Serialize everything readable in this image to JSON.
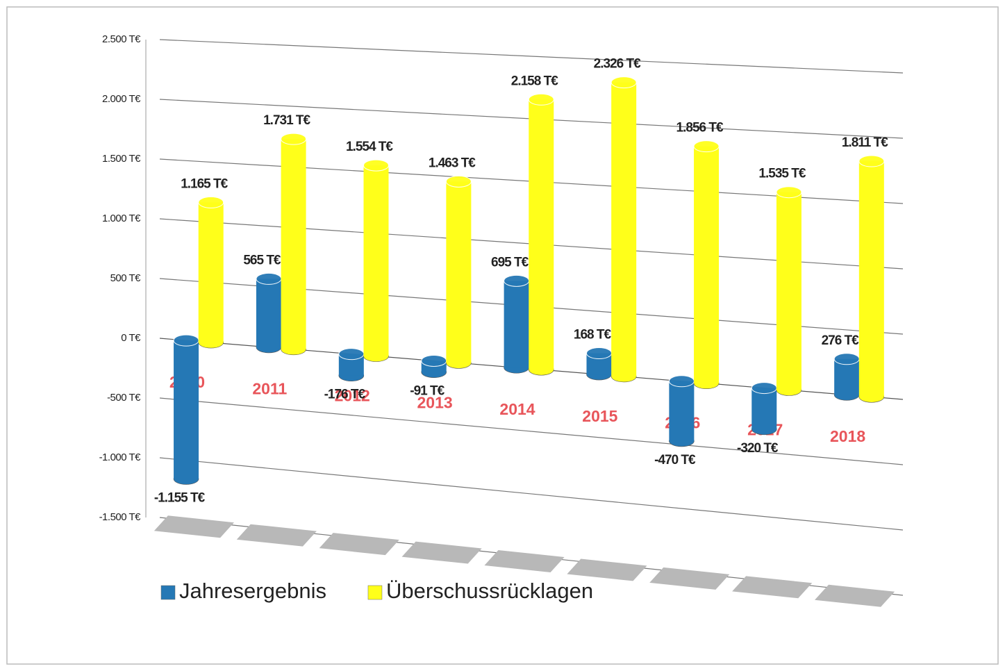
{
  "chart_data": {
    "type": "bar",
    "categories": [
      "2010",
      "2011",
      "2012",
      "2013",
      "2014",
      "2015",
      "2016",
      "2017",
      "2018"
    ],
    "series": [
      {
        "name": "Jahresergebnis",
        "color": "#2578b5",
        "values": [
          -1155,
          565,
          -176,
          -91,
          695,
          168,
          -470,
          -320,
          276
        ],
        "value_labels": [
          "-1.155 T€",
          "565 T€",
          "-176 T€",
          "-91 T€",
          "695 T€",
          "168 T€",
          "-470 T€",
          "-320 T€",
          "276 T€"
        ]
      },
      {
        "name": "Überschussrücklagen",
        "color": "#ffff1a",
        "values": [
          1165,
          1731,
          1554,
          1463,
          2158,
          2326,
          1856,
          1535,
          1811
        ],
        "value_labels": [
          "1.165 T€",
          "1.731 T€",
          "1.554 T€",
          "1.463 T€",
          "2.158 T€",
          "2.326 T€",
          "1.856 T€",
          "1.535 T€",
          "1.811 T€"
        ]
      }
    ],
    "ylim": [
      -1500,
      2500
    ],
    "yticks": [
      {
        "value": -1500,
        "label": "-1.500 T€"
      },
      {
        "value": -1000,
        "label": "-1.000 T€"
      },
      {
        "value": -500,
        "label": "-500 T€"
      },
      {
        "value": 0,
        "label": "0 T€"
      },
      {
        "value": 500,
        "label": "500 T€"
      },
      {
        "value": 1000,
        "label": "1.000 T€"
      },
      {
        "value": 1500,
        "label": "1.500 T€"
      },
      {
        "value": 2000,
        "label": "2.000 T€"
      },
      {
        "value": 2500,
        "label": "2.500 T€"
      }
    ],
    "grid": true,
    "legend": "bottom"
  }
}
